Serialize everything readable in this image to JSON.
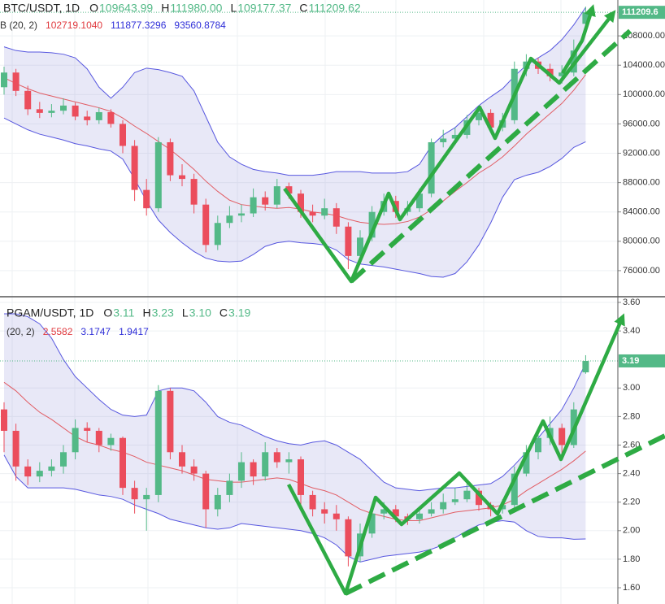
{
  "chart_data": [
    {
      "type": "candlestick",
      "title": "BTC/USDT, 1D",
      "header_keys": [
        "O",
        "H",
        "L",
        "C"
      ],
      "header_values": [
        {
          "value": 109643.99,
          "label": "109643.99"
        },
        {
          "value": 111980,
          "label": "111980.00"
        },
        {
          "value": 109177.37,
          "label": "109177.37"
        },
        {
          "value": 111209.62,
          "label": "111209.62"
        }
      ],
      "indicator": "B (20, 2)",
      "up_color": "#53b987",
      "down_color": "#eb4d5c",
      "grid": true,
      "price_badge": "111209.6",
      "ylim": [
        72444,
        112889
      ],
      "yticks": [
        {
          "value": 76000,
          "label": "76000.00"
        },
        {
          "value": 80000,
          "label": "80000.00"
        },
        {
          "value": 84000,
          "label": "84000.00"
        },
        {
          "value": 88000,
          "label": "88000.00"
        },
        {
          "value": 92000,
          "label": "92000.00"
        },
        {
          "value": 96000,
          "label": "96000.00"
        },
        {
          "value": 100000,
          "label": "100000.00"
        },
        {
          "value": 104000,
          "label": "104000.00"
        },
        {
          "value": 108000,
          "label": "108000.00"
        }
      ],
      "bands": [
        {
          "color": "#e0393e",
          "last_label": "102719.1040",
          "values": [
            102300,
            101500,
            100800,
            100200,
            99800,
            99400,
            99000,
            98600,
            98200,
            97700,
            96800,
            95700,
            94700,
            93600,
            92500,
            91200,
            89800,
            88200,
            86800,
            85600,
            85000,
            84800,
            84600,
            84500,
            84600,
            84400,
            84000,
            83800,
            83500,
            83000,
            82600,
            82400,
            82300,
            82400,
            82700,
            83300,
            84300,
            85500,
            86800,
            88000,
            89300,
            90300,
            91500,
            93000,
            94600,
            96000,
            97400,
            98800,
            100600,
            102719.104
          ]
        },
        {
          "color": "#2f2fd8",
          "last_label": "111877.3296",
          "values": [
            106500,
            106000,
            105800,
            105800,
            105700,
            105500,
            105000,
            103500,
            101000,
            99500,
            101000,
            103000,
            103600,
            103400,
            103000,
            102500,
            100500,
            97000,
            93500,
            91500,
            90500,
            89800,
            89500,
            89300,
            89000,
            89000,
            89000,
            89200,
            89500,
            89500,
            89500,
            89300,
            89300,
            89300,
            89500,
            90500,
            93000,
            94500,
            95500,
            97000,
            98500,
            99700,
            100800,
            102500,
            104000,
            105000,
            106000,
            107500,
            109500,
            111877.3296
          ]
        },
        {
          "color": "#2f2fd8",
          "last_label": "93560.8784",
          "values": [
            96800,
            96000,
            95200,
            94600,
            94200,
            93800,
            93300,
            93000,
            92600,
            92300,
            91200,
            88500,
            85500,
            82900,
            81200,
            79800,
            78600,
            77700,
            77300,
            77200,
            77300,
            78200,
            79300,
            79800,
            80000,
            79800,
            79700,
            79500,
            78800,
            77500,
            76900,
            76700,
            76500,
            76200,
            75900,
            75600,
            75200,
            75100,
            75600,
            77200,
            79500,
            82500,
            86000,
            88400,
            89000,
            89400,
            90200,
            91300,
            92800,
            93560.8784
          ]
        }
      ],
      "candles": [
        [
          101000,
          103800,
          100000,
          103000
        ],
        [
          103000,
          103500,
          99800,
          100500
        ],
        [
          100500,
          101200,
          97200,
          98000
        ],
        [
          98000,
          99000,
          96800,
          97500
        ],
        [
          97500,
          98700,
          96900,
          97800
        ],
        [
          97800,
          99500,
          97300,
          98500
        ],
        [
          98500,
          98900,
          96500,
          97000
        ],
        [
          97000,
          97800,
          95800,
          96500
        ],
        [
          96500,
          98200,
          96000,
          97600
        ],
        [
          97600,
          98000,
          95500,
          96000
        ],
        [
          96000,
          96500,
          92000,
          93000
        ],
        [
          93000,
          93800,
          85500,
          87000
        ],
        [
          87000,
          88500,
          83500,
          84500
        ],
        [
          84500,
          94200,
          84000,
          93500
        ],
        [
          93500,
          94000,
          88200,
          89000
        ],
        [
          89000,
          90500,
          87500,
          88500
        ],
        [
          88500,
          89200,
          83800,
          85000
        ],
        [
          85000,
          85800,
          78500,
          79500
        ],
        [
          79500,
          83500,
          78800,
          82500
        ],
        [
          82500,
          84800,
          81800,
          83500
        ],
        [
          83500,
          85000,
          82600,
          83800
        ],
        [
          83800,
          87200,
          83300,
          86000
        ],
        [
          86000,
          86800,
          84200,
          85000
        ],
        [
          85000,
          88500,
          84500,
          87500
        ],
        [
          87500,
          88000,
          85800,
          86500
        ],
        [
          86500,
          87000,
          83200,
          84000
        ],
        [
          84000,
          85000,
          82600,
          83500
        ],
        [
          83500,
          85800,
          83000,
          84500
        ],
        [
          84500,
          85200,
          81000,
          82000
        ],
        [
          82000,
          82600,
          76200,
          78000
        ],
        [
          78000,
          81500,
          77000,
          80500
        ],
        [
          80500,
          84800,
          80000,
          84000
        ],
        [
          84000,
          86500,
          83500,
          85500
        ],
        [
          85500,
          86200,
          83200,
          84000
        ],
        [
          84000,
          85500,
          83500,
          84500
        ],
        [
          84500,
          87200,
          84000,
          86500
        ],
        [
          86500,
          94000,
          86000,
          93500
        ],
        [
          93500,
          95200,
          92800,
          94000
        ],
        [
          94000,
          95500,
          93200,
          94500
        ],
        [
          94500,
          97200,
          94000,
          96500
        ],
        [
          96500,
          98500,
          95800,
          97500
        ],
        [
          97500,
          98000,
          94800,
          95500
        ],
        [
          95500,
          97500,
          95000,
          96500
        ],
        [
          96500,
          104500,
          96000,
          103500
        ],
        [
          103500,
          105500,
          102500,
          104500
        ],
        [
          104500,
          105000,
          102800,
          103500
        ],
        [
          103500,
          104200,
          101800,
          102500
        ],
        [
          102500,
          104000,
          101500,
          103000
        ],
        [
          103000,
          107500,
          102500,
          106000
        ],
        [
          109643.99,
          111980,
          109177.37,
          111209.62
        ]
      ]
    },
    {
      "type": "candlestick",
      "title": "PGAM/USDT, 1D",
      "header_keys": [
        "O",
        "H",
        "L",
        "C"
      ],
      "header_values": [
        {
          "value": 3.11,
          "label": "3.11"
        },
        {
          "value": 3.23,
          "label": "3.23"
        },
        {
          "value": 3.1,
          "label": "3.10"
        },
        {
          "value": 3.19,
          "label": "3.19"
        }
      ],
      "indicator": "(20, 2)",
      "up_color": "#53b987",
      "down_color": "#eb4d5c",
      "grid": true,
      "price_badge": "3.19",
      "ylim": [
        1.486,
        3.64
      ],
      "yticks": [
        {
          "value": 1.6,
          "label": "1.60"
        },
        {
          "value": 1.8,
          "label": "1.80"
        },
        {
          "value": 2,
          "label": "2.00"
        },
        {
          "value": 2.2,
          "label": "2.20"
        },
        {
          "value": 2.4,
          "label": "2.40"
        },
        {
          "value": 2.6,
          "label": "2.60"
        },
        {
          "value": 2.8,
          "label": "2.80"
        },
        {
          "value": 3,
          "label": "3.00"
        },
        {
          "value": 3.4,
          "label": "3.40"
        },
        {
          "value": 3.6,
          "label": "3.60"
        }
      ],
      "bands": [
        {
          "color": "#e0393e",
          "last_label": "2.5582",
          "values": [
            3.04,
            2.98,
            2.9,
            2.83,
            2.78,
            2.72,
            2.66,
            2.62,
            2.6,
            2.57,
            2.55,
            2.52,
            2.48,
            2.46,
            2.44,
            2.42,
            2.39,
            2.36,
            2.35,
            2.34,
            2.34,
            2.35,
            2.36,
            2.37,
            2.36,
            2.33,
            2.3,
            2.28,
            2.25,
            2.2,
            2.15,
            2.12,
            2.1,
            2.08,
            2.07,
            2.07,
            2.09,
            2.11,
            2.13,
            2.14,
            2.15,
            2.16,
            2.18,
            2.22,
            2.28,
            2.33,
            2.38,
            2.43,
            2.49,
            2.5582
          ]
        },
        {
          "color": "#2f2fd8",
          "last_label": "3.1747",
          "values": [
            3.52,
            3.52,
            3.5,
            3.45,
            3.35,
            3.2,
            3.08,
            3,
            2.92,
            2.85,
            2.81,
            2.8,
            2.81,
            2.98,
            3,
            3,
            2.98,
            2.9,
            2.8,
            2.76,
            2.74,
            2.7,
            2.66,
            2.63,
            2.61,
            2.6,
            2.62,
            2.63,
            2.6,
            2.55,
            2.5,
            2.42,
            2.34,
            2.3,
            2.29,
            2.28,
            2.29,
            2.3,
            2.3,
            2.31,
            2.32,
            2.33,
            2.38,
            2.46,
            2.55,
            2.65,
            2.75,
            2.85,
            3,
            3.1747
          ]
        },
        {
          "color": "#2f2fd8",
          "last_label": "1.9417",
          "values": [
            2.53,
            2.38,
            2.3,
            2.3,
            2.3,
            2.3,
            2.29,
            2.27,
            2.25,
            2.24,
            2.22,
            2.18,
            2.15,
            2.12,
            2.08,
            2.06,
            2.04,
            2.02,
            2.01,
            2.02,
            2.05,
            2.04,
            2.03,
            2.02,
            2.01,
            2,
            1.98,
            1.95,
            1.9,
            1.82,
            1.78,
            1.8,
            1.82,
            1.83,
            1.84,
            1.85,
            1.87,
            1.9,
            1.95,
            2,
            2.04,
            2.06,
            2.07,
            2.06,
            2,
            1.96,
            1.95,
            1.95,
            1.94,
            1.9417
          ]
        }
      ],
      "candles": [
        [
          2.85,
          2.9,
          2.55,
          2.7
        ],
        [
          2.7,
          2.75,
          2.35,
          2.45
        ],
        [
          2.45,
          2.5,
          2.32,
          2.38
        ],
        [
          2.38,
          2.48,
          2.34,
          2.42
        ],
        [
          2.42,
          2.5,
          2.38,
          2.45
        ],
        [
          2.45,
          2.6,
          2.4,
          2.55
        ],
        [
          2.55,
          2.78,
          2.5,
          2.72
        ],
        [
          2.72,
          2.76,
          2.62,
          2.7
        ],
        [
          2.7,
          2.72,
          2.55,
          2.6
        ],
        [
          2.6,
          2.68,
          2.56,
          2.65
        ],
        [
          2.65,
          2.66,
          2.25,
          2.3
        ],
        [
          2.3,
          2.35,
          2.12,
          2.22
        ],
        [
          2.22,
          2.3,
          2,
          2.25
        ],
        [
          2.25,
          3.02,
          2.2,
          2.98
        ],
        [
          2.98,
          3,
          2.5,
          2.55
        ],
        [
          2.55,
          2.6,
          2.4,
          2.45
        ],
        [
          2.45,
          2.5,
          2.35,
          2.4
        ],
        [
          2.4,
          2.42,
          2.02,
          2.15
        ],
        [
          2.15,
          2.3,
          2.1,
          2.25
        ],
        [
          2.25,
          2.4,
          2.2,
          2.35
        ],
        [
          2.35,
          2.55,
          2.3,
          2.48
        ],
        [
          2.48,
          2.5,
          2.32,
          2.38
        ],
        [
          2.38,
          2.62,
          2.35,
          2.55
        ],
        [
          2.55,
          2.58,
          2.44,
          2.48
        ],
        [
          2.48,
          2.55,
          2.4,
          2.5
        ],
        [
          2.5,
          2.52,
          2.18,
          2.25
        ],
        [
          2.25,
          2.28,
          2.1,
          2.15
        ],
        [
          2.15,
          2.2,
          2.05,
          2.12
        ],
        [
          2.12,
          2.18,
          2,
          2.08
        ],
        [
          2.08,
          2.1,
          1.75,
          1.82
        ],
        [
          1.82,
          2.05,
          1.78,
          1.98
        ],
        [
          1.98,
          2.18,
          1.95,
          2.12
        ],
        [
          2.12,
          2.2,
          2.08,
          2.15
        ],
        [
          2.15,
          2.18,
          2.06,
          2.1
        ],
        [
          2.1,
          2.12,
          2.04,
          2.08
        ],
        [
          2.08,
          2.15,
          2.05,
          2.12
        ],
        [
          2.12,
          2.2,
          2.1,
          2.15
        ],
        [
          2.15,
          2.26,
          2.12,
          2.2
        ],
        [
          2.2,
          2.3,
          2.18,
          2.22
        ],
        [
          2.22,
          2.35,
          2.2,
          2.28
        ],
        [
          2.28,
          2.3,
          2.14,
          2.18
        ],
        [
          2.18,
          2.2,
          2.1,
          2.15
        ],
        [
          2.15,
          2.22,
          2.12,
          2.18
        ],
        [
          2.18,
          2.45,
          2.15,
          2.4
        ],
        [
          2.4,
          2.6,
          2.38,
          2.55
        ],
        [
          2.55,
          2.7,
          2.5,
          2.65
        ],
        [
          2.65,
          2.8,
          2.6,
          2.72
        ],
        [
          2.72,
          2.75,
          2.5,
          2.6
        ],
        [
          2.6,
          2.9,
          2.58,
          2.85
        ],
        [
          3.11,
          3.23,
          3.1,
          3.19
        ]
      ]
    }
  ]
}
